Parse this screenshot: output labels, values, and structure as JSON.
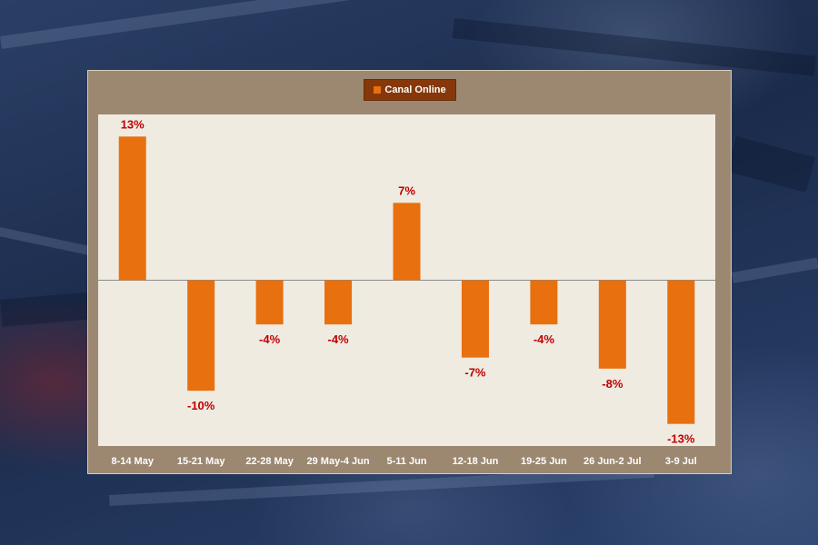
{
  "chart_data": {
    "type": "bar",
    "title": "",
    "xlabel": "",
    "ylabel": "",
    "legend": {
      "position": "top-center",
      "entries": [
        "Canal Online"
      ]
    },
    "categories": [
      "8-14 May",
      "15-21 May",
      "22-28 May",
      "29 May-4  Jun",
      "5-11 Jun",
      "12-18 Jun",
      "19-25 Jun",
      "26 Jun-2 Jul",
      "3-9 Jul"
    ],
    "series": [
      {
        "name": "Canal Online",
        "values": [
          13,
          -10,
          -4,
          -4,
          7,
          -7,
          -4,
          -8,
          -13
        ],
        "labels": [
          "13%",
          "-10%",
          "-4%",
          "-4%",
          "7%",
          "-7%",
          "-4%",
          "-8%",
          "-13%"
        ]
      }
    ],
    "ylim": [
      -15,
      15
    ],
    "grid": false,
    "colors": {
      "bar": "#e8700f",
      "data_label": "#c00000",
      "plot_background": "#efebe1",
      "frame": "#9c8871",
      "legend_background": "#86380a",
      "zero_line": "#8a8a8a",
      "tick_text": "#ffffff"
    }
  }
}
